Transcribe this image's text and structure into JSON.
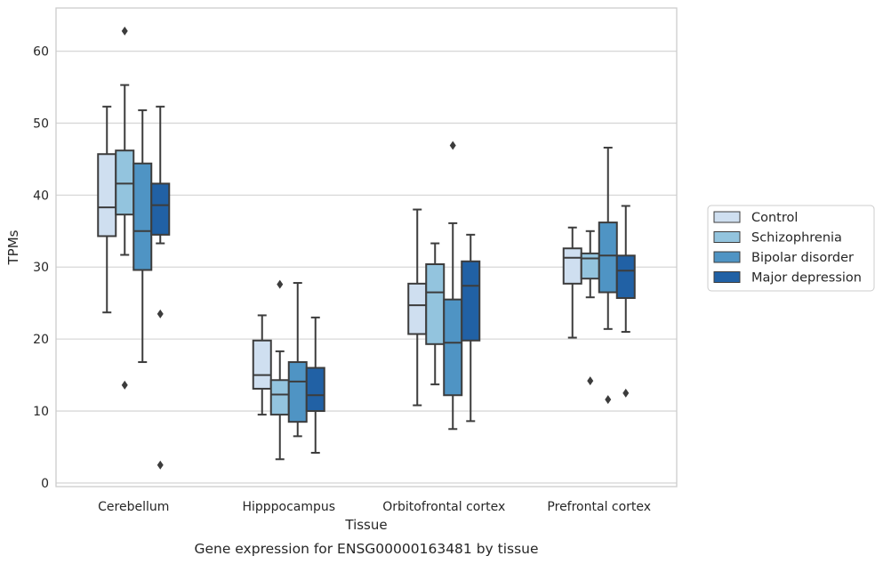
{
  "chart_data": {
    "type": "boxplot",
    "xlabel": "Tissue",
    "ylabel": "TPMs",
    "caption": "Gene expression for ENSG00000163481 by tissue",
    "ylim": [
      -0.5,
      66
    ],
    "yticks": [
      0,
      10,
      20,
      30,
      40,
      50,
      60
    ],
    "grid": "horizontal",
    "legend_position": "right",
    "categories": [
      "Cerebellum",
      "Hipppocampus",
      "Orbitofrontal cortex",
      "Prefrontal cortex"
    ],
    "series": [
      {
        "name": "Control",
        "color": "#cfdff0",
        "boxes": [
          {
            "whislo": 23.7,
            "q1": 34.3,
            "med": 38.3,
            "q3": 45.7,
            "whishi": 52.3,
            "fliers": []
          },
          {
            "whislo": 9.5,
            "q1": 13.1,
            "med": 15.0,
            "q3": 19.8,
            "whishi": 23.3,
            "fliers": []
          },
          {
            "whislo": 10.8,
            "q1": 20.7,
            "med": 24.7,
            "q3": 27.7,
            "whishi": 38.0,
            "fliers": []
          },
          {
            "whislo": 20.2,
            "q1": 27.7,
            "med": 31.3,
            "q3": 32.6,
            "whishi": 35.5,
            "fliers": []
          }
        ]
      },
      {
        "name": "Schizophrenia",
        "color": "#93c4de",
        "boxes": [
          {
            "whislo": 31.7,
            "q1": 37.3,
            "med": 41.6,
            "q3": 46.2,
            "whishi": 55.3,
            "fliers": [
              62.8,
              13.6
            ]
          },
          {
            "whislo": 3.3,
            "q1": 9.5,
            "med": 12.3,
            "q3": 14.3,
            "whishi": 18.3,
            "fliers": [
              27.6
            ]
          },
          {
            "whislo": 13.7,
            "q1": 19.3,
            "med": 26.5,
            "q3": 30.4,
            "whishi": 33.3,
            "fliers": []
          },
          {
            "whislo": 25.8,
            "q1": 28.4,
            "med": 31.2,
            "q3": 31.9,
            "whishi": 35.0,
            "fliers": [
              14.2
            ]
          }
        ]
      },
      {
        "name": "Bipolar disorder",
        "color": "#4f94c4",
        "boxes": [
          {
            "whislo": 16.8,
            "q1": 29.6,
            "med": 35.0,
            "q3": 44.4,
            "whishi": 51.8,
            "fliers": []
          },
          {
            "whislo": 6.5,
            "q1": 8.5,
            "med": 14.1,
            "q3": 16.8,
            "whishi": 27.8,
            "fliers": []
          },
          {
            "whislo": 7.5,
            "q1": 12.2,
            "med": 19.5,
            "q3": 25.5,
            "whishi": 36.1,
            "fliers": [
              46.9
            ]
          },
          {
            "whislo": 21.4,
            "q1": 26.5,
            "med": 31.6,
            "q3": 36.2,
            "whishi": 46.6,
            "fliers": [
              11.6
            ]
          }
        ]
      },
      {
        "name": "Major depression",
        "color": "#2161a5",
        "boxes": [
          {
            "whislo": 33.3,
            "q1": 34.5,
            "med": 38.6,
            "q3": 41.6,
            "whishi": 52.3,
            "fliers": [
              23.5,
              2.5
            ]
          },
          {
            "whislo": 4.2,
            "q1": 10.0,
            "med": 12.2,
            "q3": 16.0,
            "whishi": 23.0,
            "fliers": []
          },
          {
            "whislo": 8.6,
            "q1": 19.8,
            "med": 27.4,
            "q3": 30.8,
            "whishi": 34.5,
            "fliers": []
          },
          {
            "whislo": 21.0,
            "q1": 25.7,
            "med": 29.5,
            "q3": 31.6,
            "whishi": 38.5,
            "fliers": [
              12.5
            ]
          }
        ]
      }
    ]
  },
  "colors": {
    "grid": "#d8d8d8",
    "frame": "#cccccc",
    "box_edge": "#3c3c3c"
  }
}
